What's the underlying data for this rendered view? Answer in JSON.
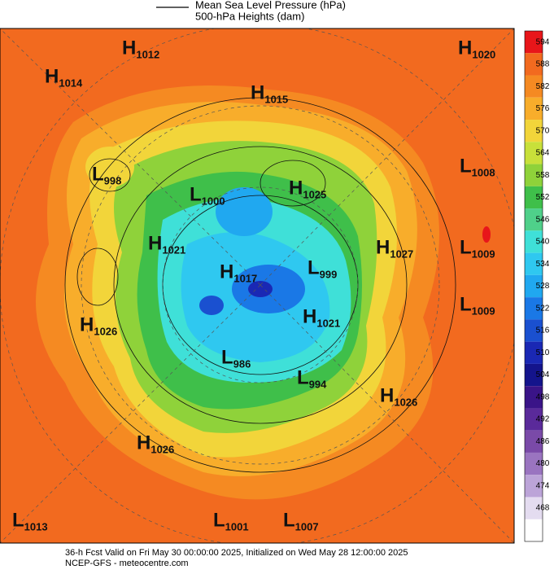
{
  "legend": {
    "line_label": "Mean Sea Level Pressure (hPa)",
    "fill_label": "500-hPa Heights (dam)"
  },
  "pressure_centers": [
    {
      "type": "H",
      "value": 1012
    },
    {
      "type": "H",
      "value": 1014
    },
    {
      "type": "H",
      "value": 1015
    },
    {
      "type": "H",
      "value": 1020
    },
    {
      "type": "L",
      "value": 998
    },
    {
      "type": "L",
      "value": 1000
    },
    {
      "type": "H",
      "value": 1025
    },
    {
      "type": "L",
      "value": 1008
    },
    {
      "type": "H",
      "value": 1021
    },
    {
      "type": "H",
      "value": 1027
    },
    {
      "type": "L",
      "value": 1009
    },
    {
      "type": "H",
      "value": 1017
    },
    {
      "type": "L",
      "value": 999
    },
    {
      "type": "L",
      "value": 1009
    },
    {
      "type": "H",
      "value": 1026
    },
    {
      "type": "H",
      "value": 1021
    },
    {
      "type": "L",
      "value": 986
    },
    {
      "type": "L",
      "value": 994
    },
    {
      "type": "H",
      "value": 1026
    },
    {
      "type": "H",
      "value": 1026
    },
    {
      "type": "L",
      "value": 1013
    },
    {
      "type": "L",
      "value": 1001
    },
    {
      "type": "L",
      "value": 1007
    }
  ],
  "colorbar": {
    "levels": [
      594,
      588,
      582,
      576,
      570,
      564,
      558,
      552,
      546,
      540,
      534,
      528,
      522,
      516,
      510,
      504,
      498,
      492,
      486,
      480,
      474,
      468
    ],
    "colors": [
      "#e8161a",
      "#f26a1f",
      "#f58a22",
      "#f8ad2b",
      "#f2d53a",
      "#c8e03a",
      "#8fd23a",
      "#3fbf4a",
      "#4fd08a",
      "#3fe0d8",
      "#2fc8f0",
      "#20a8f0",
      "#1a78e6",
      "#1a50d0",
      "#1a28b4",
      "#14148c",
      "#3a1488",
      "#5a2a9a",
      "#7a4aa8",
      "#9a74c0",
      "#bca4d8",
      "#e4dcf0"
    ]
  },
  "footer": {
    "line1": "36-h Fcst Valid on Fri May 30 00:00:00 2025, Initialized on Wed May 28 12:00:00 2025",
    "line2": "NCEP-GFS  -  meteocentre.com"
  }
}
